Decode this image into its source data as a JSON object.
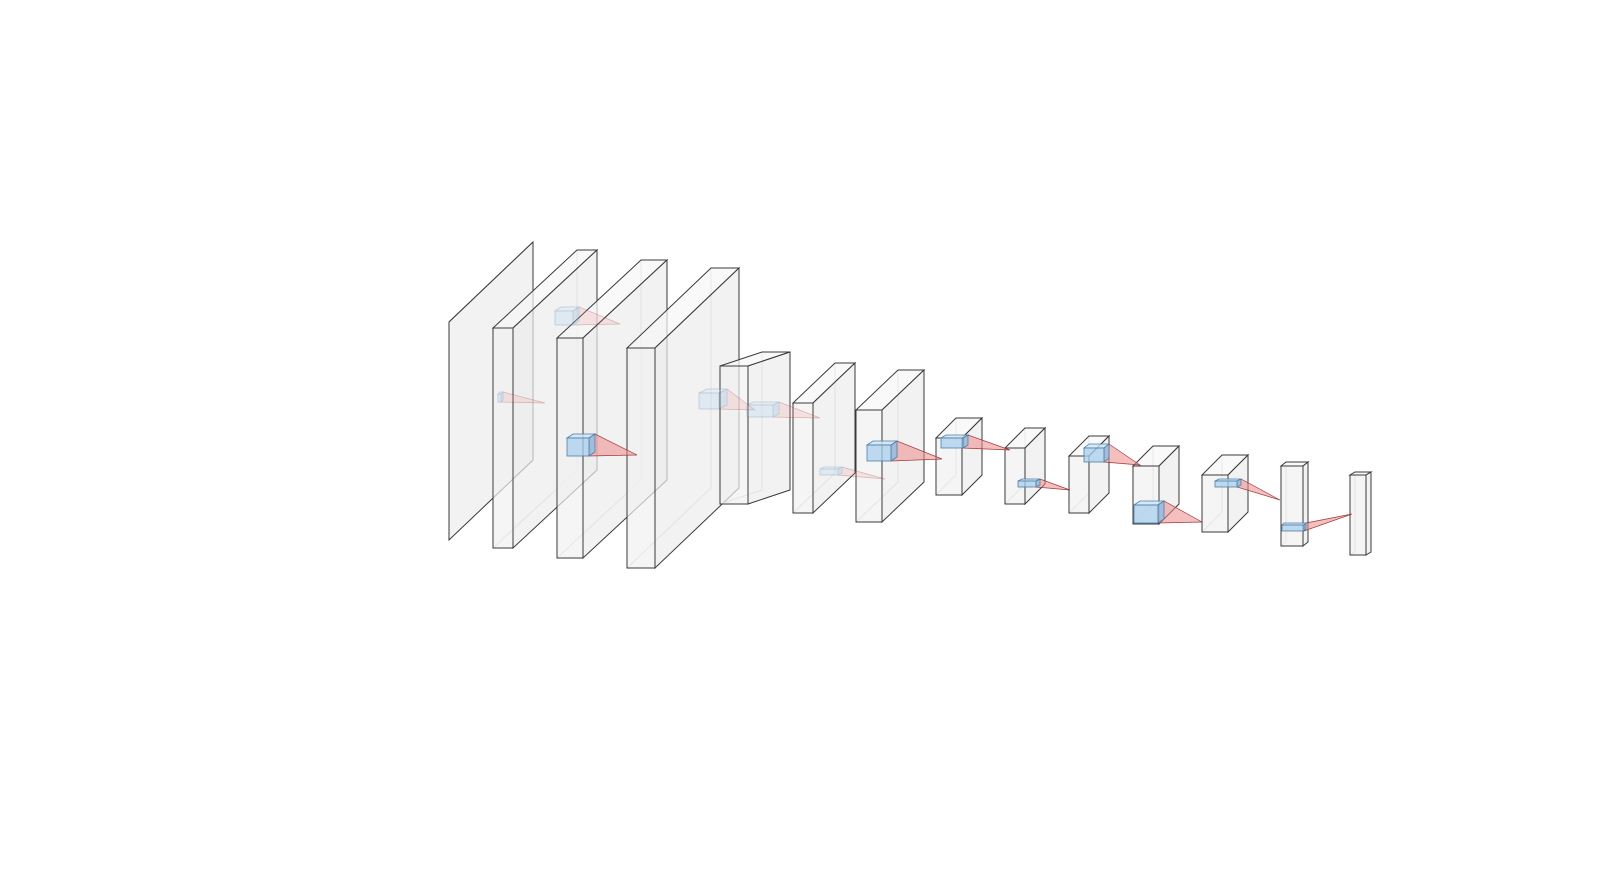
{
  "diagram": {
    "type": "cnn-architecture-3d",
    "colors": {
      "layer_face": "#f1f1f1",
      "layer_edge": "#3a3a3a",
      "kernel": "#a9cfee",
      "projection_cone": "#ef8a8a"
    },
    "layer_count": 14,
    "connection_count": 14
  }
}
